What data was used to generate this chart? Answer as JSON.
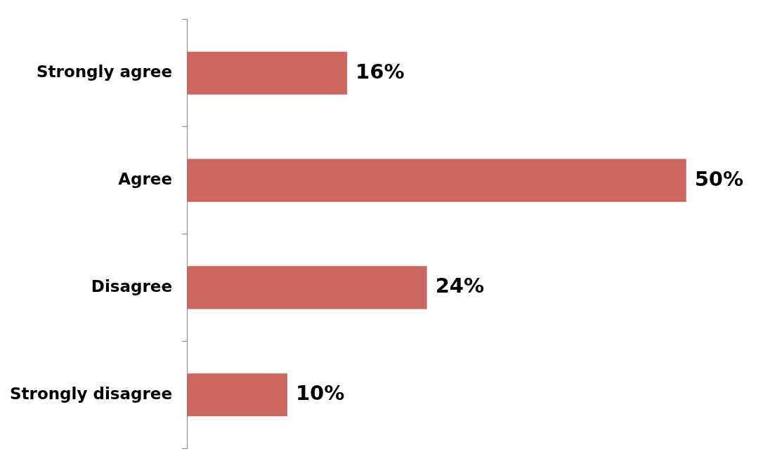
{
  "chart_data": {
    "type": "bar",
    "orientation": "horizontal",
    "categories": [
      "Strongly agree",
      "Agree",
      "Disagree",
      "Strongly disagree"
    ],
    "values": [
      16,
      50,
      24,
      10
    ],
    "value_labels": [
      "16%",
      "50%",
      "24%",
      "10%"
    ],
    "color": "#cd665e",
    "grid": false,
    "legend": false
  }
}
